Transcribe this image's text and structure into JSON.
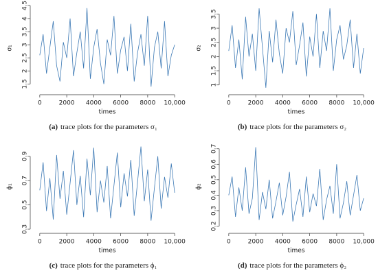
{
  "chart_data": [
    {
      "type": "line",
      "y_label": "σ₁",
      "x_label": "times",
      "caption_label": "(a)",
      "caption": "trace plots for the parameters σ₁",
      "color": "#3b78b4",
      "x": [
        0,
        250,
        500,
        750,
        1000,
        1250,
        1500,
        1750,
        2000,
        2250,
        2500,
        2750,
        3000,
        3250,
        3500,
        3750,
        4000,
        4250,
        4500,
        4750,
        5000,
        5250,
        5500,
        5750,
        6000,
        6250,
        6500,
        6750,
        7000,
        7250,
        7500,
        7750,
        8000,
        8250,
        8500,
        8750,
        9000,
        9250,
        9500,
        9750,
        10000
      ],
      "values": [
        2.6,
        3.4,
        1.9,
        2.9,
        3.9,
        2.2,
        1.6,
        3.1,
        2.5,
        4.0,
        1.8,
        2.7,
        3.5,
        2.1,
        4.4,
        1.7,
        2.9,
        3.6,
        2.3,
        1.5,
        3.2,
        2.6,
        4.1,
        1.9,
        2.8,
        3.3,
        2.0,
        3.8,
        1.6,
        2.7,
        3.4,
        2.2,
        4.1,
        1.4,
        2.9,
        3.5,
        2.1,
        3.9,
        1.8,
        2.6,
        3.0
      ],
      "xlim": [
        -400,
        10400
      ],
      "xticks": [
        0,
        2000,
        4000,
        6000,
        8000,
        {
          "value": 10000,
          "label": "10,000"
        }
      ],
      "ylim": [
        1.25,
        4.5
      ],
      "yticks": [
        1.5,
        2.0,
        2.5,
        3.0,
        3.5,
        4.0,
        4.5
      ]
    },
    {
      "type": "line",
      "y_label": "σ₂",
      "x_label": "times",
      "caption_label": "(b)",
      "caption": "trace plots for the parameters σ₂",
      "color": "#3b78b4",
      "x": [
        0,
        250,
        500,
        750,
        1000,
        1250,
        1500,
        1750,
        2000,
        2250,
        2500,
        2750,
        3000,
        3250,
        3500,
        3750,
        4000,
        4250,
        4500,
        4750,
        5000,
        5250,
        5500,
        5750,
        6000,
        6250,
        6500,
        6750,
        7000,
        7250,
        7500,
        7750,
        8000,
        8250,
        8500,
        8750,
        9000,
        9250,
        9500,
        9750,
        10000
      ],
      "values": [
        2.2,
        3.1,
        1.6,
        2.6,
        1.2,
        3.4,
        2.0,
        2.8,
        1.5,
        3.7,
        2.3,
        0.9,
        2.9,
        1.8,
        3.3,
        2.1,
        1.4,
        3.0,
        2.5,
        3.6,
        1.7,
        2.4,
        3.2,
        1.3,
        2.7,
        2.0,
        3.5,
        1.6,
        2.9,
        2.2,
        3.7,
        1.5,
        2.6,
        3.1,
        1.9,
        2.4,
        3.3,
        1.6,
        2.8,
        1.4,
        2.3
      ],
      "xlim": [
        -400,
        10400
      ],
      "xticks": [
        0,
        2000,
        4000,
        6000,
        8000,
        {
          "value": 10000,
          "label": "10,000"
        }
      ],
      "ylim": [
        0.8,
        3.8
      ],
      "yticks": [
        1.0,
        1.5,
        2.0,
        2.5,
        3.0,
        3.5
      ]
    },
    {
      "type": "line",
      "y_label": "ϕ₁",
      "x_label": "times",
      "caption_label": "(c)",
      "caption": "trace plots for the parameters ϕ₁",
      "color": "#3b78b4",
      "x": [
        0,
        250,
        500,
        750,
        1000,
        1250,
        1500,
        1750,
        2000,
        2250,
        2500,
        2750,
        3000,
        3250,
        3500,
        3750,
        4000,
        4250,
        4500,
        4750,
        5000,
        5250,
        5500,
        5750,
        6000,
        6250,
        6500,
        6750,
        7000,
        7250,
        7500,
        7750,
        8000,
        8250,
        8500,
        8750,
        9000,
        9250,
        9500,
        9750,
        10000
      ],
      "values": [
        0.62,
        0.85,
        0.45,
        0.72,
        0.38,
        0.91,
        0.55,
        0.78,
        0.42,
        0.68,
        0.95,
        0.5,
        0.74,
        0.4,
        0.88,
        0.58,
        0.97,
        0.44,
        0.7,
        0.52,
        0.82,
        0.39,
        0.66,
        0.93,
        0.48,
        0.76,
        0.57,
        0.87,
        0.41,
        0.69,
        0.98,
        0.53,
        0.79,
        0.37,
        0.64,
        0.9,
        0.47,
        0.73,
        0.56,
        0.84,
        0.6
      ],
      "xlim": [
        -400,
        10400
      ],
      "xticks": [
        0,
        2000,
        4000,
        6000,
        8000,
        {
          "value": 10000,
          "label": "10,000"
        }
      ],
      "ylim": [
        0.3,
        1.0
      ],
      "yticks": [
        0.3,
        0.5,
        0.7,
        0.9
      ]
    },
    {
      "type": "line",
      "y_label": "ϕ₂",
      "x_label": "times",
      "caption_label": "(d)",
      "caption": "trace plots for the parameters ϕ₂",
      "color": "#3b78b4",
      "x": [
        0,
        250,
        500,
        750,
        1000,
        1250,
        1500,
        1750,
        2000,
        2250,
        2500,
        2750,
        3000,
        3250,
        3500,
        3750,
        4000,
        4250,
        4500,
        4750,
        5000,
        5250,
        5500,
        5750,
        6000,
        6250,
        6500,
        6750,
        7000,
        7250,
        7500,
        7750,
        8000,
        8250,
        8500,
        8750,
        9000,
        9250,
        9500,
        9750,
        10000
      ],
      "values": [
        0.4,
        0.52,
        0.26,
        0.45,
        0.3,
        0.58,
        0.28,
        0.38,
        0.71,
        0.24,
        0.42,
        0.31,
        0.5,
        0.25,
        0.36,
        0.48,
        0.27,
        0.39,
        0.55,
        0.23,
        0.34,
        0.44,
        0.26,
        0.52,
        0.29,
        0.41,
        0.33,
        0.57,
        0.24,
        0.37,
        0.46,
        0.28,
        0.6,
        0.25,
        0.35,
        0.49,
        0.27,
        0.4,
        0.53,
        0.3,
        0.38
      ],
      "xlim": [
        -400,
        10400
      ],
      "xticks": [
        0,
        2000,
        4000,
        6000,
        8000,
        {
          "value": 10000,
          "label": "10,000"
        }
      ],
      "ylim": [
        0.18,
        0.73
      ],
      "yticks": [
        0.2,
        0.3,
        0.4,
        0.5,
        0.6,
        0.7
      ]
    }
  ]
}
